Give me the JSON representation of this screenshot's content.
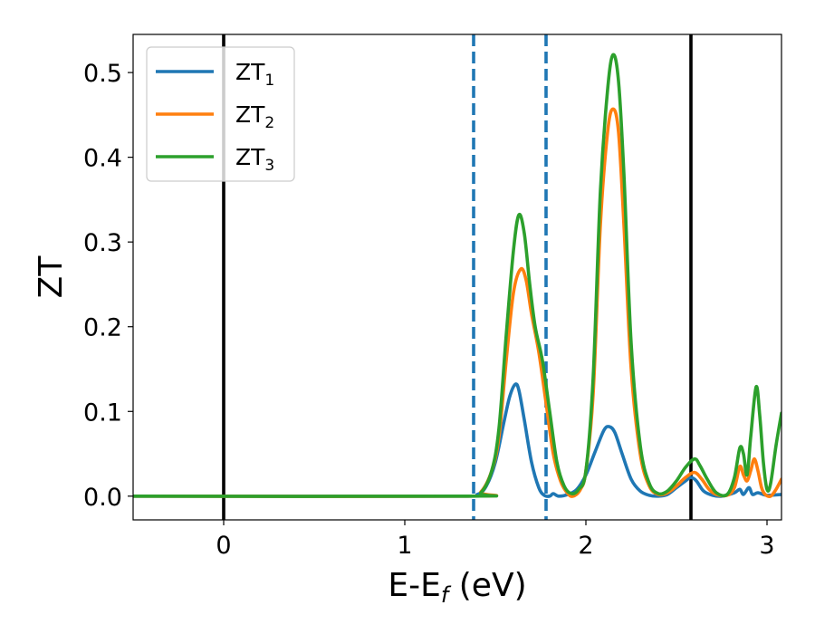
{
  "chart_data": {
    "type": "line",
    "xlabel": "E-E",
    "xlabel_subscript": "f",
    "xlabel_unit": "(eV)",
    "ylabel": "ZT",
    "xlim": [
      -0.5,
      3.08
    ],
    "ylim": [
      -0.028,
      0.545
    ],
    "xticks": [
      0,
      1,
      2,
      3
    ],
    "xtick_labels": [
      "0",
      "1",
      "2",
      "3"
    ],
    "yticks": [
      0.0,
      0.1,
      0.2,
      0.3,
      0.4,
      0.5
    ],
    "ytick_labels": [
      "0.0",
      "0.1",
      "0.2",
      "0.3",
      "0.4",
      "0.5"
    ],
    "legend_position": "top-left",
    "grid": false,
    "vlines": [
      {
        "x": 0.0,
        "style": "solid",
        "color": "#000000"
      },
      {
        "x": 2.58,
        "style": "solid",
        "color": "#000000"
      },
      {
        "x": 1.38,
        "style": "dashed",
        "color": "#1f77b4"
      },
      {
        "x": 1.78,
        "style": "dashed",
        "color": "#1f77b4"
      }
    ],
    "series": [
      {
        "name": "ZT",
        "name_subscript": "1",
        "color": "#1f77b4",
        "points": [
          [
            -0.5,
            0
          ],
          [
            1.3,
            0
          ],
          [
            1.4,
            0.002
          ],
          [
            1.45,
            0.012
          ],
          [
            1.5,
            0.04
          ],
          [
            1.55,
            0.09
          ],
          [
            1.58,
            0.118
          ],
          [
            1.61,
            0.132
          ],
          [
            1.63,
            0.125
          ],
          [
            1.66,
            0.09
          ],
          [
            1.7,
            0.04
          ],
          [
            1.74,
            0.01
          ],
          [
            1.77,
            0.001
          ],
          [
            1.8,
            0.0
          ],
          [
            1.82,
            0.003
          ],
          [
            1.85,
            0.0
          ],
          [
            1.9,
            0.002
          ],
          [
            1.95,
            0.008
          ],
          [
            2.0,
            0.025
          ],
          [
            2.05,
            0.052
          ],
          [
            2.1,
            0.078
          ],
          [
            2.13,
            0.082
          ],
          [
            2.16,
            0.075
          ],
          [
            2.2,
            0.05
          ],
          [
            2.25,
            0.02
          ],
          [
            2.3,
            0.006
          ],
          [
            2.35,
            0.001
          ],
          [
            2.4,
            0.0
          ],
          [
            2.45,
            0.002
          ],
          [
            2.5,
            0.01
          ],
          [
            2.55,
            0.018
          ],
          [
            2.58,
            0.022
          ],
          [
            2.61,
            0.018
          ],
          [
            2.65,
            0.006
          ],
          [
            2.7,
            0.001
          ],
          [
            2.75,
            0.0
          ],
          [
            2.82,
            0.004
          ],
          [
            2.85,
            0.008
          ],
          [
            2.87,
            0.002
          ],
          [
            2.9,
            0.01
          ],
          [
            2.92,
            0.002
          ],
          [
            2.95,
            0.004
          ],
          [
            3.0,
            0.001
          ],
          [
            3.08,
            0.002
          ]
        ]
      },
      {
        "name": "ZT",
        "name_subscript": "2",
        "color": "#ff7f0e",
        "points": [
          [
            -0.5,
            0
          ],
          [
            1.35,
            0
          ],
          [
            1.42,
            0.005
          ],
          [
            1.48,
            0.03
          ],
          [
            1.52,
            0.07
          ],
          [
            1.56,
            0.16
          ],
          [
            1.6,
            0.24
          ],
          [
            1.64,
            0.268
          ],
          [
            1.67,
            0.255
          ],
          [
            1.7,
            0.215
          ],
          [
            1.74,
            0.17
          ],
          [
            1.78,
            0.11
          ],
          [
            1.82,
            0.05
          ],
          [
            1.86,
            0.018
          ],
          [
            1.9,
            0.003
          ],
          [
            1.93,
            0.0
          ],
          [
            1.97,
            0.008
          ],
          [
            2.0,
            0.03
          ],
          [
            2.04,
            0.12
          ],
          [
            2.08,
            0.32
          ],
          [
            2.12,
            0.43
          ],
          [
            2.15,
            0.457
          ],
          [
            2.18,
            0.43
          ],
          [
            2.21,
            0.32
          ],
          [
            2.25,
            0.15
          ],
          [
            2.3,
            0.05
          ],
          [
            2.35,
            0.012
          ],
          [
            2.4,
            0.002
          ],
          [
            2.45,
            0.004
          ],
          [
            2.5,
            0.012
          ],
          [
            2.55,
            0.022
          ],
          [
            2.6,
            0.028
          ],
          [
            2.64,
            0.02
          ],
          [
            2.68,
            0.008
          ],
          [
            2.72,
            0.002
          ],
          [
            2.78,
            0.001
          ],
          [
            2.82,
            0.01
          ],
          [
            2.85,
            0.035
          ],
          [
            2.87,
            0.025
          ],
          [
            2.89,
            0.018
          ],
          [
            2.91,
            0.03
          ],
          [
            2.93,
            0.044
          ],
          [
            2.95,
            0.03
          ],
          [
            2.97,
            0.01
          ],
          [
            2.99,
            0.002
          ],
          [
            3.02,
            0.0
          ],
          [
            3.05,
            0.008
          ],
          [
            3.08,
            0.02
          ]
        ]
      },
      {
        "name": "ZT",
        "name_subscript": "3",
        "color": "#2ca02c",
        "points": [
          [
            -0.5,
            0
          ],
          [
            1.35,
            0
          ],
          [
            1.42,
            0.004
          ],
          [
            1.48,
            0.03
          ],
          [
            1.52,
            0.08
          ],
          [
            1.56,
            0.19
          ],
          [
            1.6,
            0.29
          ],
          [
            1.63,
            0.332
          ],
          [
            1.66,
            0.31
          ],
          [
            1.69,
            0.25
          ],
          [
            1.72,
            0.2
          ],
          [
            1.76,
            0.16
          ],
          [
            1.8,
            0.1
          ],
          [
            1.84,
            0.04
          ],
          [
            1.88,
            0.012
          ],
          [
            1.92,
            0.003
          ],
          [
            1.96,
            0.008
          ],
          [
            2.0,
            0.03
          ],
          [
            2.04,
            0.14
          ],
          [
            2.08,
            0.36
          ],
          [
            2.12,
            0.48
          ],
          [
            2.15,
            0.521
          ],
          [
            2.18,
            0.49
          ],
          [
            2.21,
            0.38
          ],
          [
            2.25,
            0.18
          ],
          [
            2.3,
            0.06
          ],
          [
            2.35,
            0.015
          ],
          [
            2.4,
            0.003
          ],
          [
            2.45,
            0.006
          ],
          [
            2.5,
            0.018
          ],
          [
            2.55,
            0.034
          ],
          [
            2.6,
            0.044
          ],
          [
            2.63,
            0.036
          ],
          [
            2.67,
            0.02
          ],
          [
            2.72,
            0.004
          ],
          [
            2.78,
            0.002
          ],
          [
            2.82,
            0.022
          ],
          [
            2.85,
            0.057
          ],
          [
            2.87,
            0.05
          ],
          [
            2.89,
            0.025
          ],
          [
            2.91,
            0.07
          ],
          [
            2.94,
            0.129
          ],
          [
            2.96,
            0.095
          ],
          [
            2.98,
            0.04
          ],
          [
            3.0,
            0.008
          ],
          [
            3.02,
            0.015
          ],
          [
            3.05,
            0.06
          ],
          [
            3.08,
            0.098
          ]
        ]
      }
    ]
  }
}
